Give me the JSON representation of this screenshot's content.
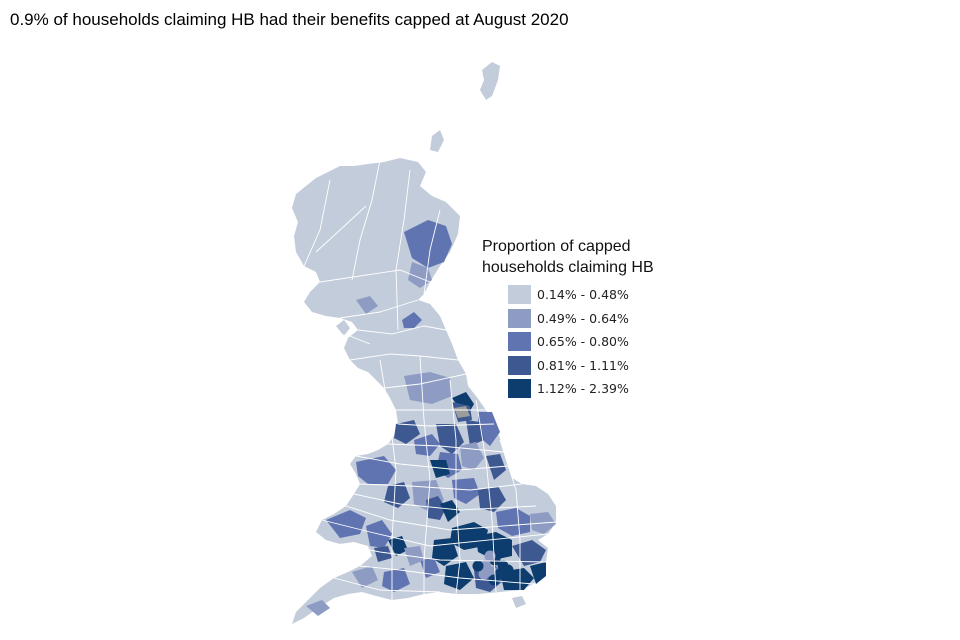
{
  "title": "0.9% of households claiming HB had their benefits capped at August 2020",
  "legend": {
    "title_line1": "Proportion of capped",
    "title_line2": "households claiming HB",
    "items": [
      {
        "label": "0.14% - 0.48%",
        "color": "#c3ccda"
      },
      {
        "label": "0.49% - 0.64%",
        "color": "#8e9cc4"
      },
      {
        "label": "0.65% - 0.80%",
        "color": "#6174b2"
      },
      {
        "label": "0.81% - 1.11%",
        "color": "#3e5992"
      },
      {
        "label": "1.12% - 2.39%",
        "color": "#0d3d6e"
      }
    ]
  },
  "no_data_color": "#9c9c9c",
  "region_outline_color": "#ffffff"
}
